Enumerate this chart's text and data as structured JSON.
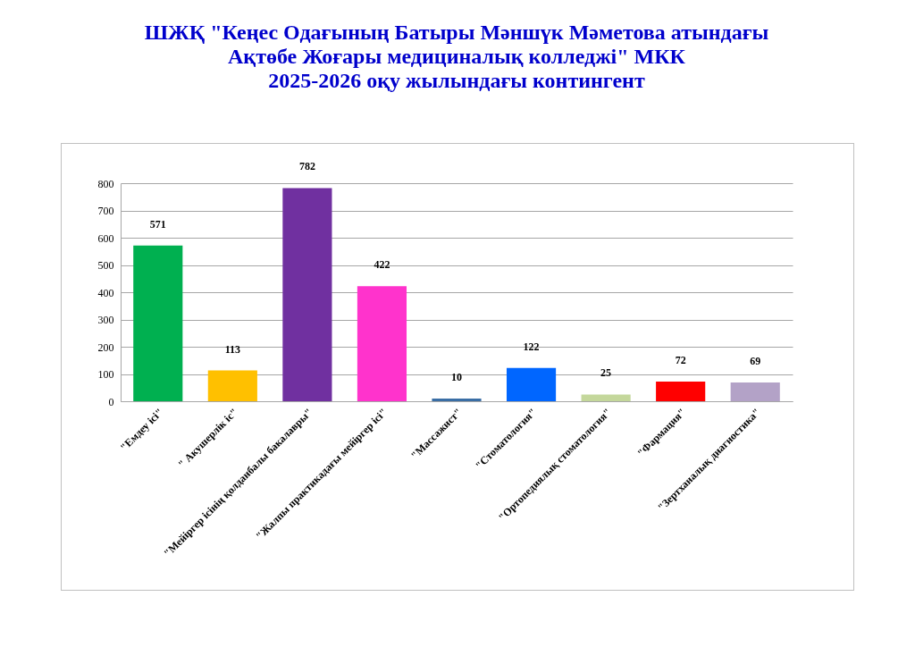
{
  "chart_data": {
    "type": "bar",
    "title": "ШЖҚ \"Кеңес Одағының Батыры Мәншүк Мәметова атындағы\nАқтөбе Жоғары медициналық колледжі\" МКК\n2025-2026 оқу жылындағы контингент",
    "categories": [
      "\"Емдеу ісі\"",
      "\" Акушерлік іс\"",
      "\"Мейіргер ісінің қолданбалы бакалавры\"",
      "\"Жалпы практикадағы мейіргер ісі\"",
      "\"Массажист\"",
      "\"Стоматология\"",
      "\"Ортопедиялық стоматология\"",
      "\"Фармация\"",
      "\"Зертханалық диагностика\""
    ],
    "values": [
      571,
      113,
      782,
      422,
      10,
      122,
      25,
      72,
      69
    ],
    "colors": [
      "#00b050",
      "#ffc000",
      "#7030a0",
      "#ff33cc",
      "#3a6ea5",
      "#0066ff",
      "#c4d79b",
      "#ff0000",
      "#b3a2c7"
    ],
    "ylim": [
      0,
      800
    ],
    "yticks": [
      0,
      100,
      200,
      300,
      400,
      500,
      600,
      700,
      800
    ],
    "grid": "y",
    "data_labels": true
  }
}
